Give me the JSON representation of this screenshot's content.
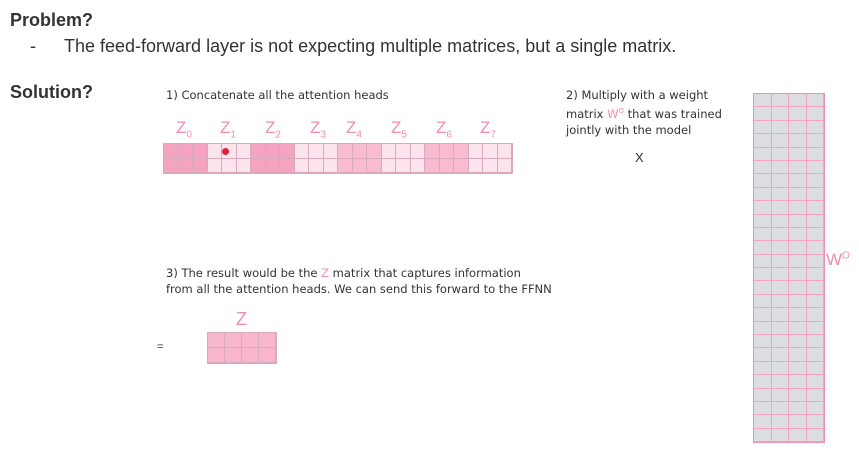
{
  "problem": {
    "title": "Problem?",
    "bullet": "-",
    "text": "The feed-forward layer is not expecting multiple matrices, but a single matrix."
  },
  "solution": {
    "title": "Solution?",
    "step1": "1) Concatenate all the attention heads",
    "step2_line1": "2) Multiply with a weight",
    "step2_line2_pre": "matrix ",
    "step2_wo_base": "W",
    "step2_wo_sup": "O",
    "step2_line2_post": " that was trained",
    "step2_line3": "jointly with the model",
    "step3_line1_pre": "3) The result would be the ",
    "step3_z": "Z",
    "step3_line1_post": " matrix that captures information",
    "step3_line2": "from all the attention heads. We can send this forward to the FFNN"
  },
  "heads": [
    {
      "base": "Z",
      "sub": "0"
    },
    {
      "base": "Z",
      "sub": "1"
    },
    {
      "base": "Z",
      "sub": "2"
    },
    {
      "base": "Z",
      "sub": "3"
    },
    {
      "base": "Z",
      "sub": "4"
    },
    {
      "base": "Z",
      "sub": "5"
    },
    {
      "base": "Z",
      "sub": "6"
    },
    {
      "base": "Z",
      "sub": "7"
    }
  ],
  "symbols": {
    "times": "X",
    "equals": "=",
    "z_result": "Z",
    "wo_base": "W",
    "wo_sup": "O"
  },
  "colors": {
    "head_fills": [
      "#f4a3c1",
      "#fce4ec",
      "#f4a3c1",
      "#fce4ec",
      "#f8bbd0",
      "#fce4ec",
      "#f8bbd0",
      "#fce4ec"
    ],
    "accent": "#f08db2",
    "dot": "#e02040"
  }
}
